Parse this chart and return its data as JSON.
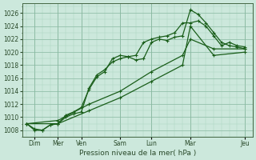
{
  "xlabel": "Pression niveau de la mer( hPa )",
  "bg_color": "#cce8dc",
  "grid_color_major": "#88b8a0",
  "grid_color_minor": "#aad4be",
  "line_color": "#1a5e1a",
  "ylim": [
    1007,
    1027.5
  ],
  "yticks": [
    1008,
    1010,
    1012,
    1014,
    1016,
    1018,
    1020,
    1022,
    1024,
    1026
  ],
  "xlim": [
    -0.3,
    14.5
  ],
  "xtick_positions": [
    0.5,
    2.0,
    3.5,
    6.0,
    8.0,
    10.5,
    14.0
  ],
  "xtick_labels": [
    "Dim",
    "Mer",
    "Ven",
    "Sam",
    "Lun",
    "Mar",
    "Jeu"
  ],
  "vline_positions": [
    0.5,
    2.0,
    3.5,
    6.0,
    8.0,
    10.5,
    14.0
  ],
  "series1_x": [
    0.0,
    0.5,
    1.0,
    1.5,
    2.0,
    2.5,
    3.0,
    3.5,
    4.0,
    4.5,
    5.0,
    5.5,
    6.0,
    6.5,
    7.0,
    7.5,
    8.0,
    8.5,
    9.0,
    9.5,
    10.0,
    10.5,
    11.0,
    11.5,
    12.0,
    12.5,
    13.0,
    13.5,
    14.0
  ],
  "series1_y": [
    1009.0,
    1008.2,
    1008.0,
    1008.8,
    1009.0,
    1010.3,
    1010.8,
    1011.5,
    1014.3,
    1016.2,
    1017.0,
    1019.0,
    1019.5,
    1019.3,
    1018.8,
    1019.0,
    1021.5,
    1022.0,
    1021.8,
    1022.3,
    1022.5,
    1026.5,
    1025.8,
    1024.5,
    1023.0,
    1021.5,
    1021.0,
    1020.8,
    1020.5
  ],
  "series2_x": [
    0.0,
    0.5,
    1.0,
    1.5,
    2.0,
    2.5,
    3.0,
    3.5,
    4.0,
    4.5,
    5.0,
    5.5,
    6.0,
    6.5,
    7.0,
    7.5,
    8.0,
    8.5,
    9.0,
    9.5,
    10.0,
    10.5,
    11.0,
    11.5,
    12.0,
    12.5,
    13.0,
    13.5,
    14.0
  ],
  "series2_y": [
    1009.0,
    1008.0,
    1008.0,
    1008.8,
    1009.0,
    1010.0,
    1010.5,
    1010.8,
    1014.5,
    1016.5,
    1017.3,
    1018.5,
    1019.0,
    1019.3,
    1019.5,
    1021.5,
    1022.0,
    1022.3,
    1022.5,
    1023.0,
    1024.5,
    1024.5,
    1024.8,
    1024.0,
    1022.5,
    1021.0,
    1021.5,
    1021.0,
    1020.8
  ],
  "series3_x": [
    0.0,
    2.0,
    4.0,
    6.0,
    8.0,
    10.0,
    10.5,
    12.0,
    14.0
  ],
  "series3_y": [
    1009.0,
    1009.0,
    1011.0,
    1013.0,
    1015.5,
    1018.0,
    1024.0,
    1019.5,
    1020.0
  ],
  "series4_x": [
    0.0,
    2.0,
    4.0,
    6.0,
    8.0,
    10.0,
    10.5,
    12.0,
    14.0
  ],
  "series4_y": [
    1009.0,
    1009.5,
    1012.0,
    1014.0,
    1017.0,
    1019.5,
    1022.0,
    1020.5,
    1020.5
  ]
}
